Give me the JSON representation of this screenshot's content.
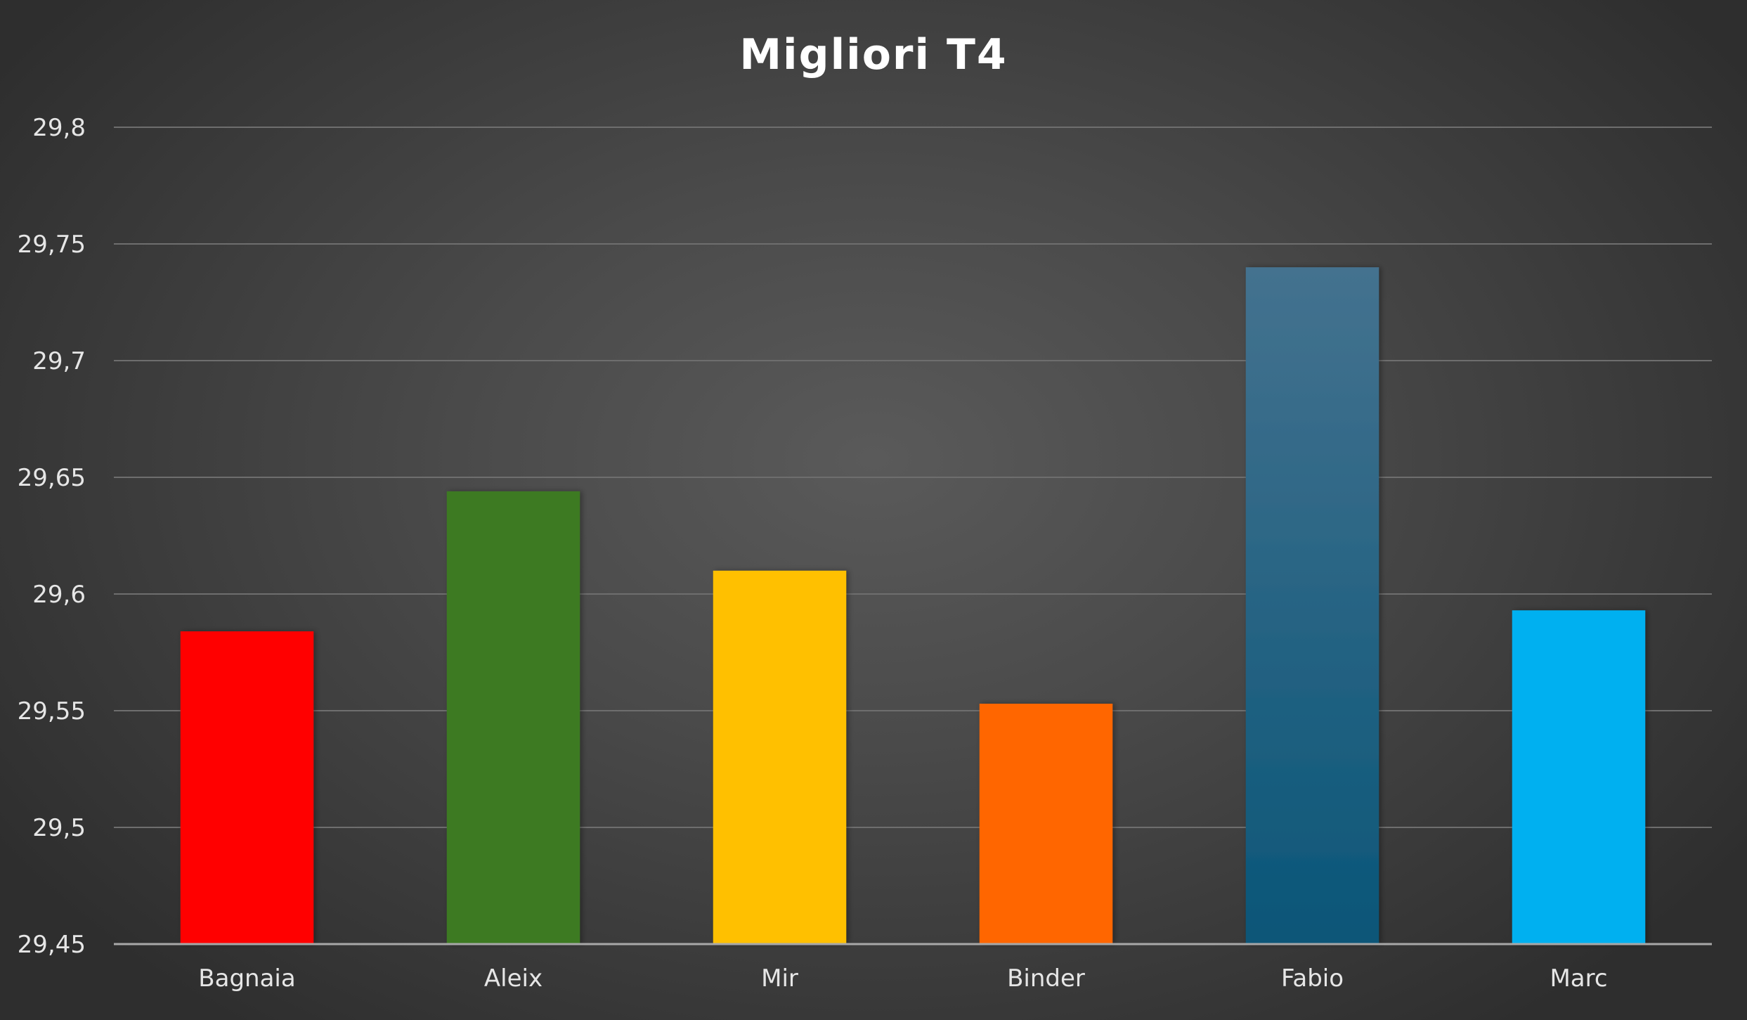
{
  "chart_data": {
    "type": "bar",
    "title": "Migliori T4",
    "categories": [
      "Bagnaia",
      "Aleix",
      "Mir",
      "Binder",
      "Fabio",
      "Marc"
    ],
    "values": [
      29.584,
      29.644,
      29.61,
      29.553,
      29.74,
      29.593
    ],
    "ylim": [
      29.45,
      29.8
    ],
    "yticks": [
      29.45,
      29.5,
      29.55,
      29.6,
      29.65,
      29.7,
      29.75,
      29.8
    ],
    "ytick_labels": [
      "29,45",
      "29,5",
      "29,55",
      "29,6",
      "29,65",
      "29,7",
      "29,75",
      "29,8"
    ],
    "grid": true,
    "legend": "none",
    "colors": [
      "#ff0000",
      "#3c7a24",
      "#ffc000",
      "#ff6600",
      "#1f6a94",
      "#00b0f0"
    ],
    "gradient_colors": {
      "Fabio": [
        "#44728f",
        "#0a5678"
      ]
    }
  }
}
